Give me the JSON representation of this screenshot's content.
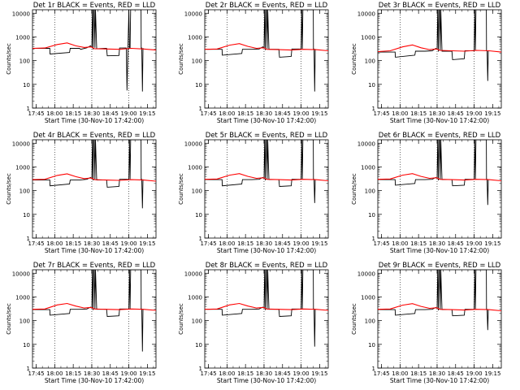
{
  "chart_data": {
    "type": "line",
    "layout": "3x3 grid of identical log-scale time-series panels",
    "xlabel": "Start Time (30-Nov-10 17:42:00)",
    "ylabel": "Counts/sec",
    "x_tick_labels": [
      "17:45",
      "18:00",
      "18:15",
      "18:30",
      "18:45",
      "19:00",
      "19:15"
    ],
    "x_tick_minutes": [
      3,
      18,
      33,
      48,
      63,
      78,
      93
    ],
    "xlim_minutes": [
      0,
      100
    ],
    "y_tick_labels": [
      "1",
      "10",
      "100",
      "1000",
      "10000"
    ],
    "ylim": [
      1,
      14000
    ],
    "y_scale": "log",
    "dotted_vertical_lines_minutes": [
      18,
      48,
      78
    ],
    "colors": {
      "events": "#000000",
      "lld": "#ff0000"
    },
    "panels": [
      {
        "title": "Det 1r BLACK = Events, RED = LLD",
        "series": [
          {
            "name": "BLACK = Events",
            "x": [
              0,
              14,
              14.2,
              30,
              30.5,
              38,
              39,
              44,
              47,
              48,
              48.5,
              49,
              49.5,
              50,
              50.5,
              51,
              52,
              60,
              60.5,
              70,
              70.5,
              76,
              76.5,
              78,
              78.5,
              79,
              79.5,
              80,
              82,
              87.9,
              88,
              88.5,
              89,
              89.5
            ],
            "y": [
              330,
              330,
              190,
              220,
              330,
              330,
              300,
              350,
              420,
              380,
              14000,
              300,
              14000,
              14000,
              350,
              14000,
              320,
              330,
              160,
              165,
              340,
              340,
              5.5,
              14000,
              340,
              340,
              14000,
              14000,
              14000,
              14000,
              340,
              340,
              5,
              340
            ]
          },
          {
            "name": "RED = LLD",
            "x": [
              0,
              10,
              20,
              28,
              35,
              42,
              47,
              48.5,
              50,
              60,
              70,
              80,
              90,
              100
            ],
            "y": [
              330,
              340,
              480,
              560,
              420,
              360,
              380,
              360,
              320,
              310,
              300,
              330,
              310,
              280
            ]
          }
        ]
      },
      {
        "title": "Det 2r BLACK = Events, RED = LLD",
        "series": [
          {
            "name": "BLACK = Events",
            "x": [
              0,
              14,
              14.2,
              30,
              30.5,
              38,
              44,
              47,
              48,
              48.5,
              49,
              49.5,
              50,
              50.5,
              51,
              52,
              60,
              60.5,
              70,
              70.5,
              76,
              78,
              78.5,
              79,
              79.5,
              80,
              82,
              87.9,
              88,
              88.5,
              89,
              89.5
            ],
            "y": [
              300,
              300,
              170,
              200,
              300,
              300,
              310,
              380,
              350,
              14000,
              280,
              14000,
              14000,
              320,
              14000,
              300,
              300,
              140,
              150,
              310,
              310,
              310,
              14000,
              310,
              14000,
              14000,
              14000,
              14000,
              310,
              310,
              5,
              310
            ]
          },
          {
            "name": "RED = LLD",
            "x": [
              0,
              10,
              20,
              28,
              35,
              42,
              47,
              48.5,
              50,
              60,
              70,
              80,
              90,
              100
            ],
            "y": [
              300,
              310,
              450,
              520,
              400,
              330,
              350,
              340,
              300,
              290,
              280,
              300,
              290,
              260
            ]
          }
        ]
      },
      {
        "title": "Det 3r BLACK = Events, RED = LLD",
        "series": [
          {
            "name": "BLACK = Events",
            "x": [
              0,
              14,
              14.2,
              30,
              30.5,
              38,
              44,
              47,
              48,
              48.5,
              49,
              49.5,
              50,
              50.5,
              51,
              52,
              60,
              60.5,
              70,
              70.5,
              76,
              78,
              78.5,
              79,
              79.5,
              80,
              82,
              87.9,
              88,
              88.5,
              89,
              89.5
            ],
            "y": [
              230,
              230,
              140,
              170,
              250,
              250,
              260,
              330,
              300,
              14000,
              240,
              14000,
              14000,
              270,
              14000,
              250,
              250,
              110,
              120,
              260,
              260,
              260,
              14000,
              260,
              14000,
              14000,
              14000,
              14000,
              260,
              260,
              14,
              260
            ]
          },
          {
            "name": "RED = LLD",
            "x": [
              0,
              10,
              20,
              28,
              35,
              42,
              47,
              48.5,
              50,
              60,
              70,
              80,
              90,
              100
            ],
            "y": [
              240,
              260,
              380,
              460,
              350,
              290,
              310,
              300,
              270,
              260,
              250,
              270,
              260,
              230
            ]
          }
        ]
      },
      {
        "title": "Det 4r BLACK = Events, RED = LLD",
        "series": [
          {
            "name": "BLACK = Events",
            "x": [
              0,
              14,
              14.2,
              30,
              30.5,
              38,
              44,
              47,
              48,
              48.5,
              49,
              49.5,
              50,
              50.5,
              51,
              52,
              60,
              60.5,
              70,
              70.5,
              76,
              78,
              78.5,
              79,
              79.5,
              80,
              82,
              87.9,
              88,
              88.5,
              89,
              89.5
            ],
            "y": [
              280,
              280,
              160,
              190,
              280,
              280,
              300,
              360,
              330,
              14000,
              270,
              14000,
              14000,
              300,
              14000,
              280,
              280,
              140,
              150,
              300,
              300,
              300,
              14000,
              300,
              14000,
              14000,
              14000,
              14000,
              300,
              300,
              18,
              300
            ]
          },
          {
            "name": "RED = LLD",
            "x": [
              0,
              10,
              20,
              28,
              35,
              42,
              47,
              48.5,
              50,
              60,
              70,
              80,
              90,
              100
            ],
            "y": [
              290,
              300,
              440,
              510,
              390,
              320,
              340,
              330,
              290,
              280,
              270,
              290,
              280,
              250
            ]
          }
        ]
      },
      {
        "title": "Det 5r BLACK = Events, RED = LLD",
        "series": [
          {
            "name": "BLACK = Events",
            "x": [
              0,
              14,
              14.2,
              30,
              30.5,
              38,
              44,
              47,
              48,
              48.5,
              49,
              49.5,
              50,
              50.5,
              51,
              52,
              60,
              60.5,
              70,
              70.5,
              76,
              78,
              78.5,
              79,
              79.5,
              80,
              82,
              87.9,
              88,
              88.5,
              89,
              89.5
            ],
            "y": [
              290,
              290,
              160,
              190,
              290,
              290,
              300,
              360,
              330,
              14000,
              270,
              14000,
              14000,
              300,
              14000,
              290,
              290,
              150,
              160,
              300,
              300,
              300,
              14000,
              300,
              14000,
              14000,
              14000,
              14000,
              300,
              300,
              30,
              300
            ]
          },
          {
            "name": "RED = LLD",
            "x": [
              0,
              10,
              20,
              28,
              35,
              42,
              47,
              48.5,
              50,
              60,
              70,
              80,
              90,
              100
            ],
            "y": [
              300,
              310,
              450,
              520,
              400,
              330,
              350,
              340,
              300,
              290,
              280,
              300,
              290,
              260
            ]
          }
        ]
      },
      {
        "title": "Det 6r BLACK = Events, RED = LLD",
        "series": [
          {
            "name": "BLACK = Events",
            "x": [
              0,
              14,
              14.2,
              30,
              30.5,
              38,
              44,
              47,
              48,
              48.5,
              49,
              49.5,
              50,
              50.5,
              51,
              52,
              60,
              60.5,
              70,
              70.5,
              76,
              78,
              78.5,
              79,
              79.5,
              80,
              82,
              87.9,
              88,
              88.5,
              89,
              89.5
            ],
            "y": [
              290,
              290,
              170,
              200,
              290,
              290,
              300,
              360,
              330,
              14000,
              270,
              14000,
              14000,
              300,
              14000,
              290,
              290,
              160,
              170,
              300,
              300,
              300,
              14000,
              300,
              14000,
              14000,
              14000,
              14000,
              300,
              300,
              25,
              300
            ]
          },
          {
            "name": "RED = LLD",
            "x": [
              0,
              10,
              20,
              28,
              35,
              42,
              47,
              48.5,
              50,
              60,
              70,
              80,
              90,
              100
            ],
            "y": [
              300,
              310,
              450,
              520,
              400,
              330,
              350,
              340,
              300,
              290,
              280,
              300,
              290,
              260
            ]
          }
        ]
      },
      {
        "title": "Det 7r BLACK = Events, RED = LLD",
        "series": [
          {
            "name": "BLACK = Events",
            "x": [
              0,
              14,
              14.2,
              30,
              30.5,
              38,
              44,
              47,
              48,
              48.5,
              49,
              49.5,
              50,
              50.5,
              51,
              52,
              60,
              60.5,
              70,
              70.5,
              76,
              78,
              78.5,
              79,
              79.5,
              80,
              82,
              87.9,
              88,
              88.5,
              89,
              89.5
            ],
            "y": [
              290,
              290,
              170,
              200,
              300,
              300,
              310,
              370,
              340,
              14000,
              280,
              14000,
              14000,
              310,
              14000,
              300,
              300,
              150,
              160,
              310,
              310,
              310,
              14000,
              310,
              14000,
              14000,
              14000,
              14000,
              310,
              310,
              5,
              310
            ]
          },
          {
            "name": "RED = LLD",
            "x": [
              0,
              10,
              20,
              28,
              35,
              42,
              47,
              48.5,
              50,
              60,
              70,
              80,
              90,
              100
            ],
            "y": [
              300,
              310,
              460,
              530,
              410,
              340,
              360,
              350,
              310,
              300,
              290,
              310,
              300,
              270
            ]
          }
        ]
      },
      {
        "title": "Det 8r BLACK = Events, RED = LLD",
        "series": [
          {
            "name": "BLACK = Events",
            "x": [
              0,
              14,
              14.2,
              30,
              30.5,
              38,
              44,
              47,
              48,
              48.5,
              49,
              49.5,
              50,
              50.5,
              51,
              52,
              60,
              60.5,
              70,
              70.5,
              76,
              78,
              78.5,
              79,
              79.5,
              80,
              82,
              87.9,
              88,
              88.5,
              89,
              89.5
            ],
            "y": [
              300,
              300,
              170,
              200,
              300,
              300,
              310,
              370,
              340,
              14000,
              280,
              14000,
              14000,
              310,
              14000,
              300,
              300,
              150,
              160,
              310,
              310,
              310,
              14000,
              310,
              14000,
              14000,
              14000,
              14000,
              310,
              310,
              8,
              310
            ]
          },
          {
            "name": "RED = LLD",
            "x": [
              0,
              10,
              20,
              28,
              35,
              42,
              47,
              48.5,
              50,
              60,
              70,
              80,
              90,
              100
            ],
            "y": [
              300,
              310,
              460,
              530,
              410,
              340,
              360,
              350,
              310,
              300,
              290,
              310,
              300,
              270
            ]
          }
        ]
      },
      {
        "title": "Det 9r BLACK = Events, RED = LLD",
        "series": [
          {
            "name": "BLACK = Events",
            "x": [
              0,
              14,
              14.2,
              30,
              30.5,
              38,
              44,
              47,
              48,
              48.5,
              49,
              49.5,
              50,
              50.5,
              51,
              52,
              60,
              60.5,
              70,
              70.5,
              76,
              78,
              78.5,
              79,
              79.5,
              80,
              82,
              87.9,
              88,
              88.5,
              89,
              89.5
            ],
            "y": [
              290,
              290,
              170,
              200,
              290,
              290,
              300,
              360,
              330,
              14000,
              270,
              14000,
              14000,
              300,
              14000,
              290,
              290,
              160,
              170,
              300,
              300,
              300,
              14000,
              300,
              14000,
              14000,
              14000,
              14000,
              300,
              300,
              40,
              300
            ]
          },
          {
            "name": "RED = LLD",
            "x": [
              0,
              10,
              20,
              28,
              35,
              42,
              47,
              48.5,
              50,
              60,
              70,
              80,
              90,
              100
            ],
            "y": [
              300,
              310,
              450,
              520,
              400,
              330,
              350,
              340,
              300,
              290,
              280,
              300,
              290,
              260
            ]
          }
        ]
      }
    ]
  }
}
